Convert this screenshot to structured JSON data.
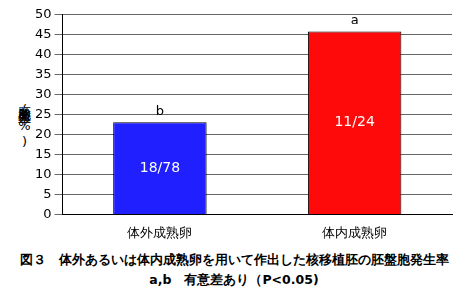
{
  "chart_data": {
    "type": "bar",
    "title": "図３　体外あるいは体内成熟卵を用いて作出した核移植胚の胚盤胞発生率",
    "subtitle": "a,b　有意差あり（P<0.05)",
    "y_label": "胚盤胞発生率(%)",
    "categories": [
      "体外成熟卵",
      "体内成熟卵"
    ],
    "values": [
      23.1,
      45.8
    ],
    "value_labels": [
      "18/78",
      "11/24"
    ],
    "data_labels": true,
    "annotations": [
      "b",
      "a"
    ],
    "colors": [
      "#1f1fff",
      "#ff0a0a"
    ],
    "ylim": [
      0,
      50
    ],
    "yticks": [
      0,
      5,
      10,
      15,
      20,
      25,
      30,
      35,
      40,
      45,
      50
    ],
    "grid": true
  }
}
